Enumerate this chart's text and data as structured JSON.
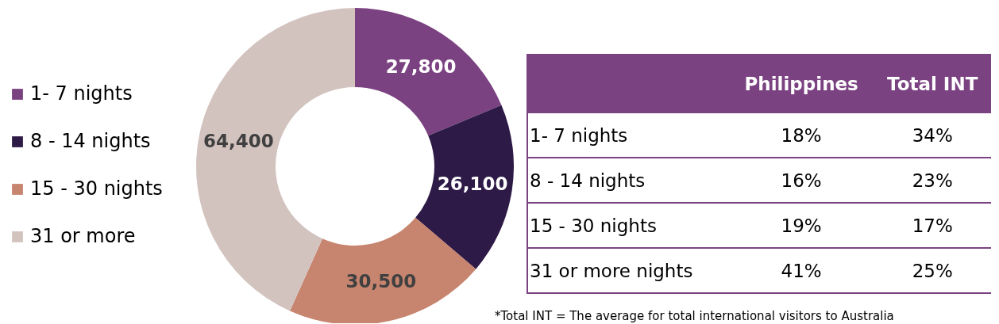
{
  "chart_data": [
    {
      "type": "donut",
      "categories": [
        "1- 7 nights",
        "8 - 14 nights",
        "15 - 30 nights",
        "31 or more"
      ],
      "values": [
        27800,
        26100,
        30500,
        64400
      ],
      "value_labels": [
        "27,800",
        "26,100",
        "30,500",
        "64,400"
      ],
      "colors": [
        "#7b4282",
        "#2e1a47",
        "#c7846e",
        "#d3c3bf"
      ],
      "legend": "left"
    },
    {
      "type": "other",
      "categories": [
        "Philippines",
        "Total INT"
      ],
      "y_categories": [
        "1- 7 nights",
        "8 - 14 nights",
        "15 - 30 nights",
        "31 or more nights"
      ],
      "cell_labels": [
        [
          "18%",
          "34%"
        ],
        [
          "16%",
          "23%"
        ],
        [
          "19%",
          "17%"
        ],
        [
          "41%",
          "25%"
        ]
      ],
      "annotations": [
        "*Total INT = The average for total international visitors to Australia"
      ]
    }
  ]
}
